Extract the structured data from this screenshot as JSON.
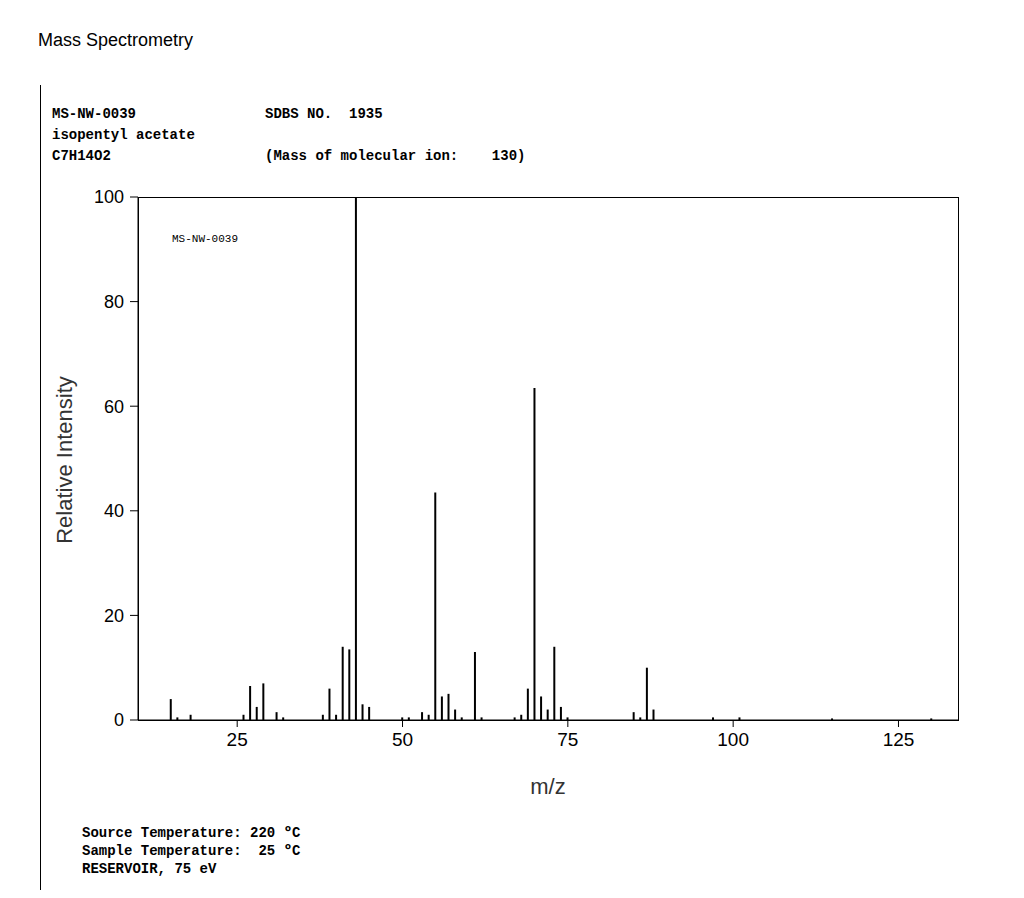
{
  "chart_data": {
    "type": "bar",
    "title": "Mass Spectrometry",
    "header": [
      [
        "MS-NW-0039",
        "SDBS NO.  1935"
      ],
      [
        "isopentyl acetate"
      ],
      [
        "C7H14O2",
        "(Mass of molecular ion:    130)"
      ]
    ],
    "annotations": [
      "MS-NW-0039"
    ],
    "footer": [
      "Source Temperature: 220 ºC",
      "Sample Temperature:  25 ºC",
      "RESERVOIR, 75 eV"
    ],
    "x_label": "m/z",
    "y_label": "Relative Intensity",
    "x": [
      15,
      16,
      18,
      26,
      27,
      28,
      29,
      31,
      32,
      38,
      39,
      40,
      41,
      42,
      43,
      44,
      45,
      50,
      51,
      53,
      54,
      55,
      56,
      57,
      58,
      59,
      61,
      62,
      67,
      68,
      69,
      70,
      71,
      72,
      73,
      74,
      75,
      85,
      86,
      87,
      88,
      97,
      101,
      115,
      130
    ],
    "values": [
      4,
      0.5,
      1,
      1,
      6.5,
      2.5,
      7,
      1.5,
      0.5,
      1,
      6,
      1,
      14,
      13.5,
      100,
      3,
      2.5,
      0.5,
      0.5,
      1.5,
      1,
      43.5,
      4.5,
      5,
      2,
      0.5,
      13,
      0.5,
      0.5,
      1,
      6,
      63.5,
      4.5,
      2,
      14,
      2.5,
      0.5,
      1.5,
      0.5,
      10,
      2,
      0.5,
      0.5,
      0.3,
      0.3
    ],
    "color": "#000000",
    "xlim": [
      10,
      134
    ],
    "xticks": [
      25,
      50,
      75,
      100,
      125
    ],
    "ylim": [
      0,
      100
    ],
    "yticks": [
      0,
      20,
      40,
      60,
      80,
      100
    ],
    "grid": false
  }
}
